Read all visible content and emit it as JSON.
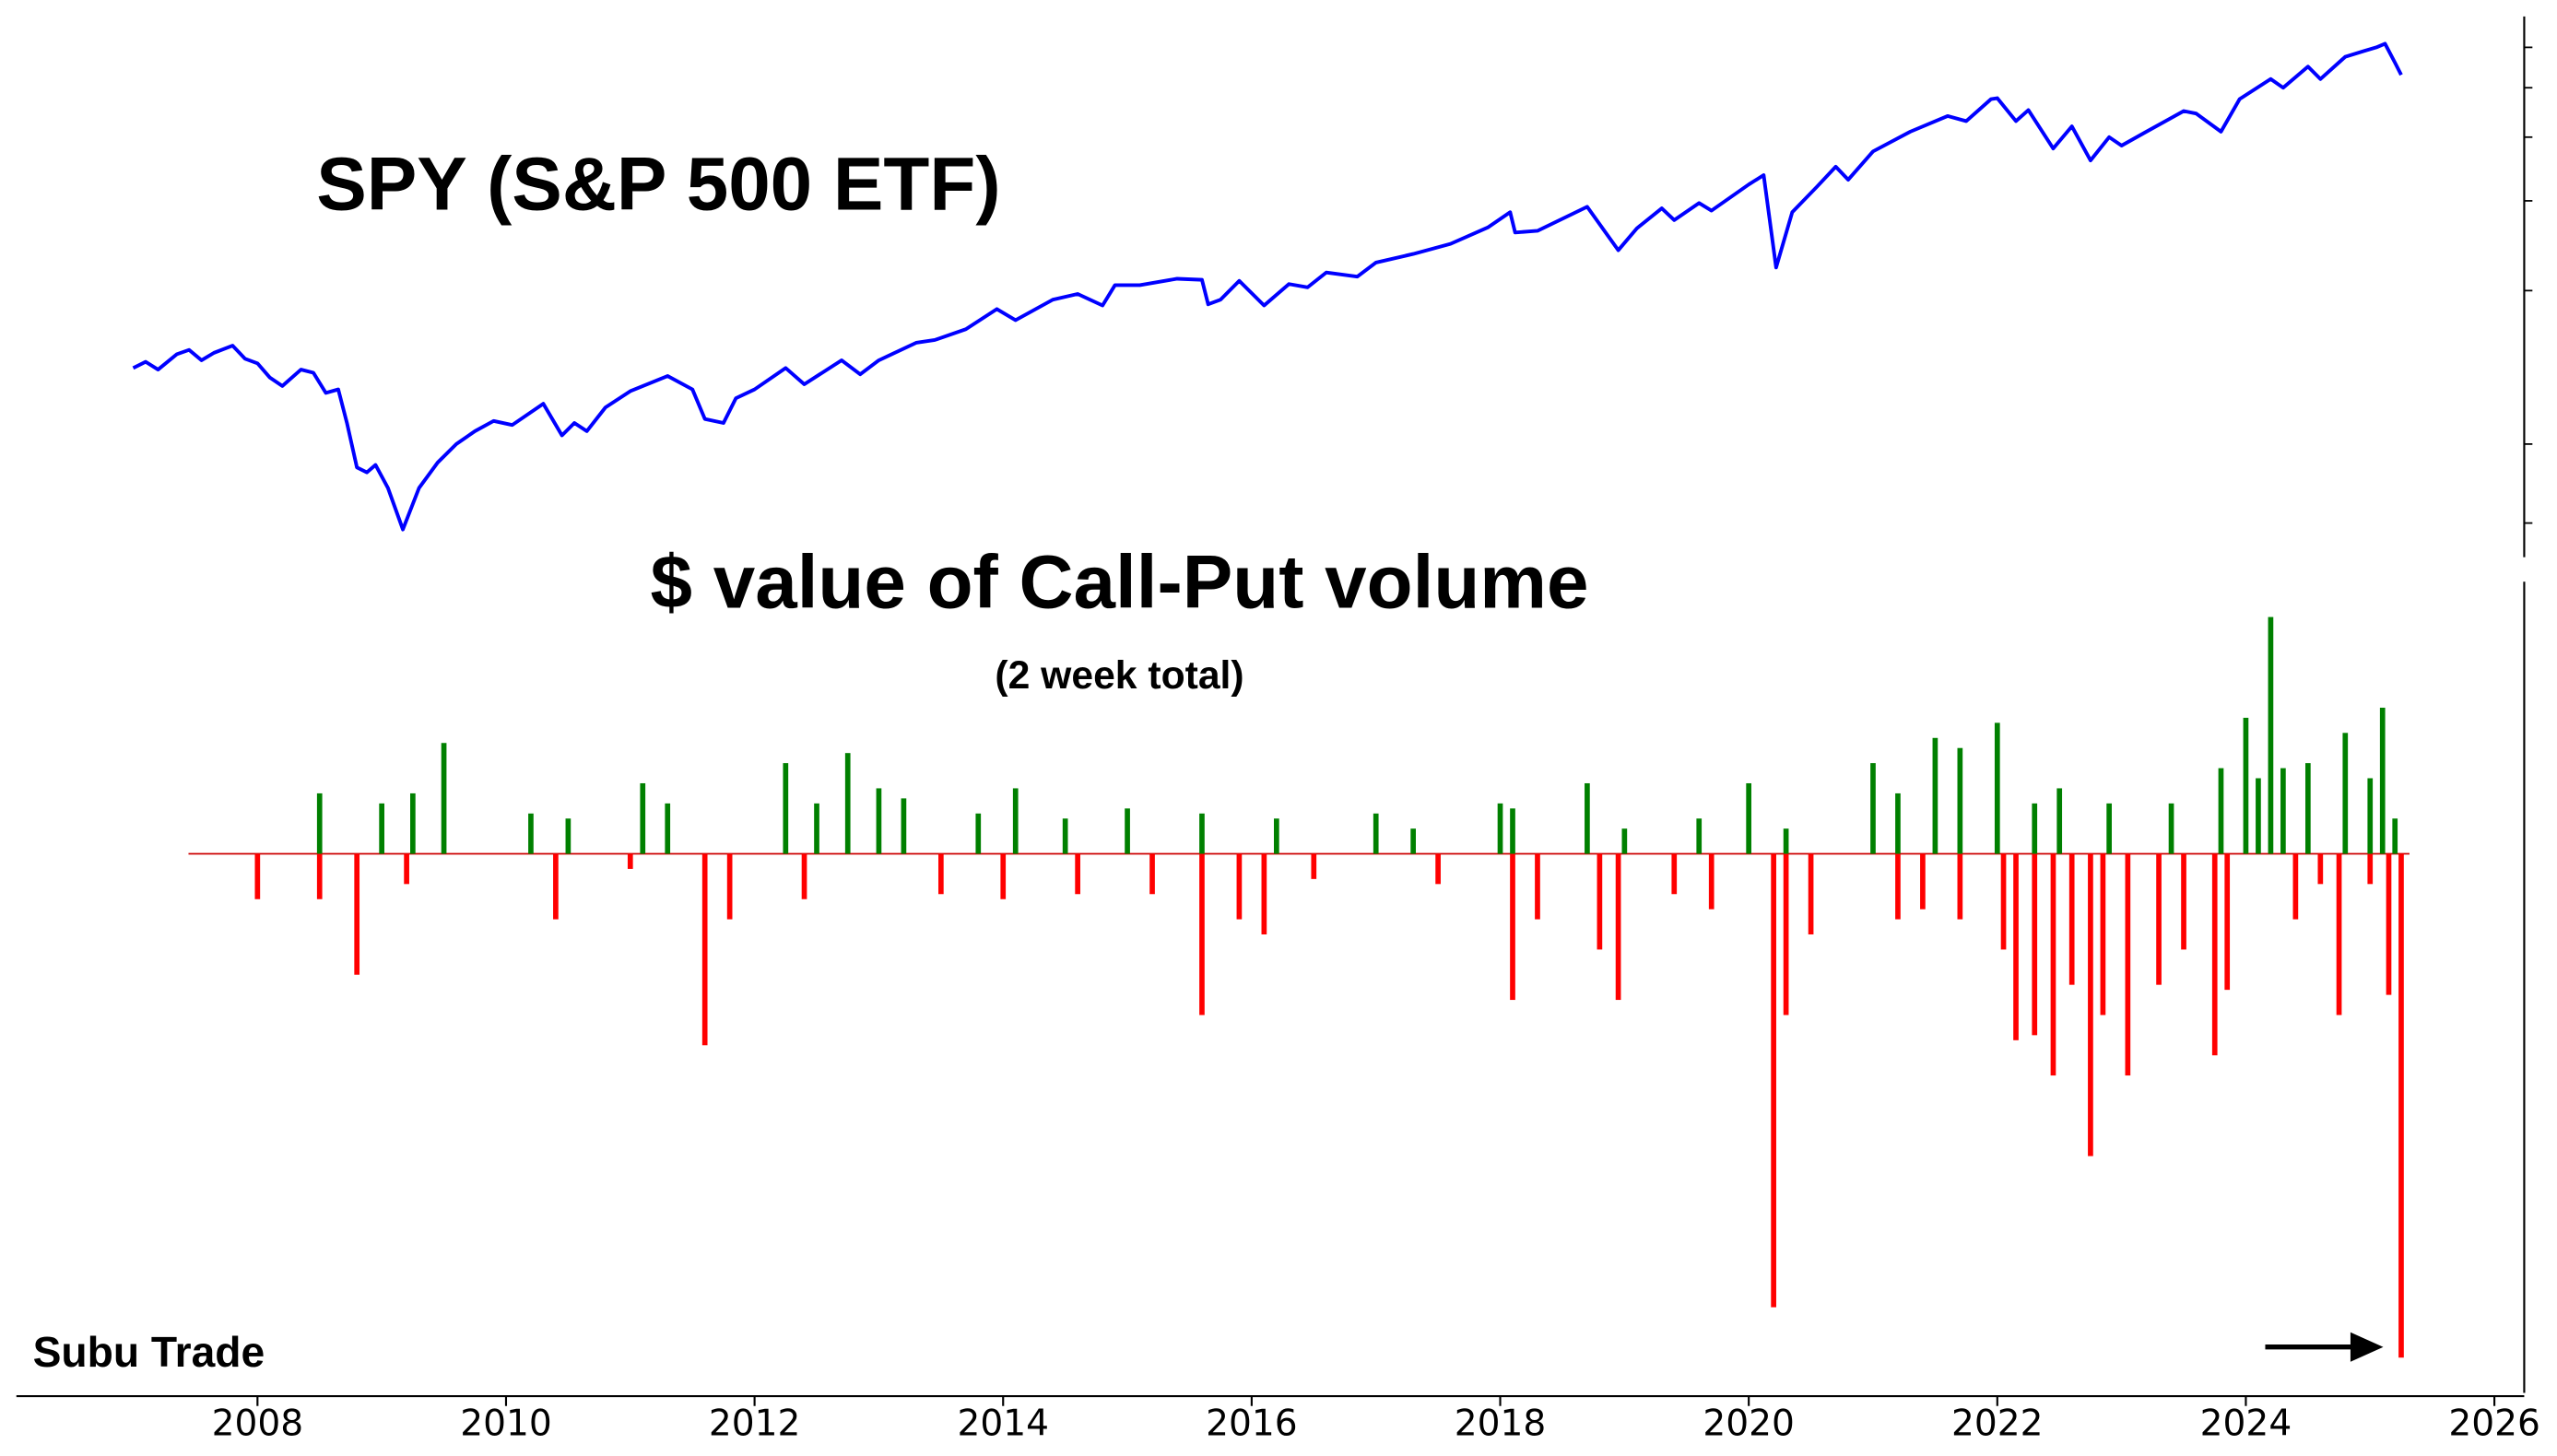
{
  "chart_data": [
    {
      "type": "line",
      "title": "SPY (S&P 500 ETF)",
      "color": "#0000ff",
      "log_y": true,
      "xlim": [
        2006.06,
        2026.24
      ],
      "ylim": [
        60,
        690
      ],
      "yticks": [
        70,
        100,
        200,
        300,
        400,
        500,
        600
      ],
      "x": [
        2007.0,
        2007.1,
        2007.2,
        2007.35,
        2007.45,
        2007.55,
        2007.65,
        2007.8,
        2007.9,
        2008.0,
        2008.1,
        2008.2,
        2008.35,
        2008.45,
        2008.55,
        2008.65,
        2008.72,
        2008.8,
        2008.88,
        2008.95,
        2009.05,
        2009.17,
        2009.3,
        2009.45,
        2009.6,
        2009.75,
        2009.9,
        2010.05,
        2010.3,
        2010.45,
        2010.55,
        2010.65,
        2010.8,
        2011.0,
        2011.3,
        2011.5,
        2011.6,
        2011.75,
        2011.85,
        2012.0,
        2012.25,
        2012.4,
        2012.7,
        2012.85,
        2013.0,
        2013.3,
        2013.45,
        2013.7,
        2013.95,
        2014.1,
        2014.4,
        2014.6,
        2014.8,
        2014.9,
        2015.1,
        2015.4,
        2015.6,
        2015.65,
        2015.75,
        2015.9,
        2016.1,
        2016.3,
        2016.45,
        2016.6,
        2016.85,
        2017.0,
        2017.3,
        2017.6,
        2017.9,
        2018.08,
        2018.12,
        2018.3,
        2018.7,
        2018.95,
        2019.1,
        2019.3,
        2019.4,
        2019.6,
        2019.7,
        2020.0,
        2020.12,
        2020.22,
        2020.35,
        2020.55,
        2020.7,
        2020.8,
        2021.0,
        2021.3,
        2021.6,
        2021.75,
        2021.95,
        2022.0,
        2022.15,
        2022.25,
        2022.45,
        2022.6,
        2022.75,
        2022.9,
        2023.0,
        2023.2,
        2023.5,
        2023.6,
        2023.8,
        2023.95,
        2024.2,
        2024.3,
        2024.5,
        2024.6,
        2024.8,
        2024.95,
        2025.05,
        2025.12,
        2025.2,
        2025.25
      ],
      "values": [
        141,
        145,
        140,
        150,
        153,
        146,
        151,
        156,
        147,
        144,
        135,
        130,
        140,
        138,
        126,
        128,
        110,
        90,
        88,
        91,
        82,
        68,
        82,
        92,
        100,
        106,
        111,
        109,
        120,
        104,
        110,
        106,
        118,
        127,
        136,
        128,
        112,
        110,
        123,
        128,
        141,
        131,
        146,
        137,
        146,
        158,
        160,
        168,
        184,
        175,
        192,
        197,
        187,
        205,
        205,
        211,
        210,
        188,
        192,
        209,
        187,
        206,
        203,
        217,
        213,
        227,
        236,
        247,
        266,
        285,
        260,
        262,
        292,
        240,
        265,
        290,
        275,
        297,
        287,
        323,
        337,
        222,
        285,
        320,
        350,
        330,
        375,
        410,
        440,
        430,
        475,
        477,
        430,
        452,
        380,
        420,
        360,
        400,
        385,
        410,
        450,
        445,
        410,
        475,
        520,
        500,
        550,
        520,
        575,
        590,
        600,
        610,
        560,
        530
      ]
    },
    {
      "type": "bar",
      "title": "$ value of Call-Put volume",
      "subtitle": "(2 week total)",
      "annotation": "Subu Trade",
      "positive_color": "#008000",
      "negative_color": "#ff0000",
      "xlim": [
        2006.06,
        2026.24
      ],
      "ylim": [
        -107,
        54
      ],
      "xticks": [
        2008,
        2010,
        2012,
        2014,
        2016,
        2018,
        2020,
        2022,
        2024,
        2026
      ],
      "x": [
        2008.5,
        2009.0,
        2009.25,
        2009.5,
        2010.2,
        2010.5,
        2011.1,
        2011.3,
        2012.25,
        2012.5,
        2012.75,
        2013.0,
        2013.2,
        2013.8,
        2014.1,
        2014.5,
        2015.0,
        2015.6,
        2016.2,
        2017.0,
        2017.3,
        2018.0,
        2018.1,
        2018.7,
        2019.0,
        2019.6,
        2020.0,
        2020.3,
        2021.0,
        2021.2,
        2021.5,
        2021.7,
        2022.0,
        2022.3,
        2022.5,
        2022.9,
        2023.4,
        2023.8,
        2024.0,
        2024.1,
        2024.2,
        2024.3,
        2024.5,
        2024.8,
        2025.0,
        2025.1,
        2025.2,
        2008.0,
        2008.5,
        2008.8,
        2009.2,
        2010.4,
        2011.0,
        2011.6,
        2011.8,
        2012.4,
        2013.5,
        2014.0,
        2014.6,
        2015.2,
        2015.6,
        2015.9,
        2016.1,
        2016.5,
        2017.5,
        2018.1,
        2018.3,
        2018.8,
        2018.95,
        2019.4,
        2019.7,
        2020.2,
        2020.3,
        2020.5,
        2021.2,
        2021.4,
        2021.7,
        2022.05,
        2022.15,
        2022.3,
        2022.45,
        2022.6,
        2022.75,
        2022.85,
        2023.05,
        2023.3,
        2023.5,
        2023.75,
        2023.85,
        2024.4,
        2024.6,
        2024.75,
        2025.0,
        2025.15,
        2025.25
      ],
      "values": [
        12,
        10,
        12,
        22,
        8,
        7,
        14,
        10,
        18,
        10,
        20,
        13,
        11,
        8,
        13,
        7,
        9,
        8,
        7,
        8,
        5,
        10,
        9,
        14,
        5,
        7,
        14,
        5,
        18,
        12,
        23,
        21,
        26,
        10,
        13,
        10,
        10,
        17,
        27,
        15,
        47,
        17,
        18,
        24,
        15,
        29,
        7,
        -9,
        -9,
        -24,
        -6,
        -13,
        -3,
        -38,
        -13,
        -9,
        -8,
        -9,
        -8,
        -8,
        -32,
        -13,
        -16,
        -5,
        -6,
        -29,
        -13,
        -19,
        -29,
        -8,
        -11,
        -90,
        -32,
        -16,
        -13,
        -11,
        -13,
        -19,
        -37,
        -36,
        -44,
        -26,
        -60,
        -32,
        -44,
        -26,
        -19,
        -40,
        -27,
        -13,
        -6,
        -32,
        -6,
        -28,
        -100
      ]
    }
  ]
}
